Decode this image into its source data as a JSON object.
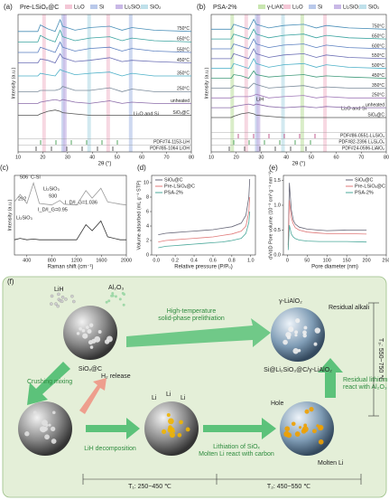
{
  "chart_data": [
    {
      "type": "line",
      "panel_label": "(a)",
      "title": "Pre-LSiOₓ@C",
      "xlabel": "2θ (°)",
      "ylabel": "Intensity (a.u.)",
      "legend": "curve-end",
      "xlim": [
        10,
        80
      ],
      "xticks": [
        10,
        20,
        30,
        40,
        50,
        60,
        70,
        80
      ],
      "ylim": [
        0,
        105
      ],
      "x": [
        10,
        18,
        19,
        22,
        25,
        27,
        28,
        33,
        39,
        47,
        52,
        56,
        65,
        80
      ],
      "phases": [
        {
          "name": "Li₂O",
          "color": "#f3c7d6"
        },
        {
          "name": "Si",
          "color": "#b9c9ea"
        },
        {
          "name": "Li₂SiO₃",
          "color": "#c9b8e6"
        },
        {
          "name": "SiO₂",
          "color": "#bfe0ea"
        }
      ],
      "references": [
        "PDF#85-1064 LiOH",
        "PDF#74-1153-LiH"
      ],
      "annotations": [
        "Li₂O and Si"
      ],
      "series": [
        {
          "name": "750°C",
          "color": "#4a8fb8",
          "values": [
            92,
            92,
            97,
            94,
            92,
            101,
            96,
            93,
            95,
            96,
            93,
            95,
            93,
            92
          ]
        },
        {
          "name": "650°C",
          "color": "#3aa3a0",
          "values": [
            84,
            84,
            89,
            86,
            84,
            93,
            88,
            85,
            87,
            88,
            85,
            87,
            85,
            84
          ]
        },
        {
          "name": "550°C",
          "color": "#5a7fc0",
          "values": [
            76,
            76,
            80,
            78,
            76,
            84,
            80,
            77,
            79,
            80,
            77,
            79,
            77,
            76
          ]
        },
        {
          "name": "450°C",
          "color": "#6b6fb5",
          "values": [
            68,
            68,
            71,
            70,
            68,
            75,
            72,
            69,
            70,
            72,
            69,
            70,
            69,
            68
          ]
        },
        {
          "name": "350°C",
          "color": "#4cb0c8",
          "values": [
            58,
            58,
            60,
            59,
            58,
            63,
            62,
            59,
            60,
            61,
            58,
            60,
            58,
            58
          ]
        },
        {
          "name": "250°C",
          "color": "#7a8a9a",
          "values": [
            46,
            46,
            47,
            47,
            47,
            48,
            50,
            47,
            47,
            49,
            46,
            48,
            46,
            46
          ]
        },
        {
          "name": "unheated",
          "color": "#8a6aa8",
          "values": [
            37,
            37,
            38,
            39,
            40,
            39,
            40,
            38,
            37,
            39,
            37,
            38,
            37,
            37
          ]
        },
        {
          "name": "SiOₓ@C",
          "color": "#555555",
          "values": [
            28,
            28,
            29,
            31,
            32,
            31,
            30,
            29,
            28,
            28,
            28,
            28,
            28,
            28
          ]
        }
      ]
    },
    {
      "type": "line",
      "panel_label": "(b)",
      "title": "PSA-2%",
      "xlabel": "2θ (°)",
      "ylabel": "Intensity (a.u.)",
      "legend": "curve-end",
      "xlim": [
        10,
        80
      ],
      "xticks": [
        10,
        20,
        30,
        40,
        50,
        60,
        70,
        80
      ],
      "ylim": [
        0,
        112
      ],
      "x": [
        10,
        18,
        19,
        22,
        25,
        27,
        28,
        33,
        39,
        47,
        52,
        56,
        65,
        80
      ],
      "phases": [
        {
          "name": "γ-LiAlO₂",
          "color": "#c9e6b0"
        },
        {
          "name": "Li₂O",
          "color": "#f3c7d6"
        },
        {
          "name": "Si",
          "color": "#b9c9ea"
        },
        {
          "name": "Li₂SiO₃",
          "color": "#c9b8e6"
        },
        {
          "name": "SiO₂",
          "color": "#bfe0ea"
        }
      ],
      "references": [
        "PDF#24-0596-LiAlO₂",
        "PDF#82-2396 Li₂Si₂O₅",
        "PDF#86-0551-Li₂SiO₃"
      ],
      "annotations": [
        "LiH",
        "Li₂O and Si"
      ],
      "series": [
        {
          "name": "750°C",
          "color": "#4a8fb8",
          "values": [
            100,
            100,
            104,
            102,
            100,
            108,
            104,
            101,
            103,
            104,
            101,
            103,
            101,
            100
          ]
        },
        {
          "name": "650°C",
          "color": "#3aa3a0",
          "values": [
            92,
            92,
            96,
            94,
            92,
            100,
            96,
            93,
            95,
            96,
            93,
            95,
            93,
            92
          ]
        },
        {
          "name": "600°C",
          "color": "#5a7fc0",
          "values": [
            84,
            84,
            88,
            86,
            84,
            92,
            88,
            85,
            87,
            88,
            85,
            87,
            85,
            84
          ]
        },
        {
          "name": "550°C",
          "color": "#6b6fb5",
          "values": [
            76,
            76,
            80,
            78,
            76,
            84,
            80,
            77,
            79,
            80,
            77,
            79,
            77,
            76
          ]
        },
        {
          "name": "500°C",
          "color": "#4cb0c8",
          "values": [
            68,
            68,
            72,
            70,
            68,
            76,
            72,
            69,
            71,
            72,
            69,
            71,
            69,
            68
          ]
        },
        {
          "name": "450°C",
          "color": "#3f9a7a",
          "values": [
            60,
            60,
            63,
            62,
            60,
            66,
            63,
            61,
            62,
            63,
            61,
            62,
            61,
            60
          ]
        },
        {
          "name": "350°C",
          "color": "#7a8a9a",
          "values": [
            52,
            52,
            54,
            53,
            52,
            56,
            55,
            52,
            53,
            54,
            52,
            53,
            52,
            52
          ]
        },
        {
          "name": "250°C",
          "color": "#a07ab8",
          "values": [
            44,
            44,
            45,
            45,
            45,
            46,
            47,
            44,
            45,
            46,
            44,
            45,
            44,
            44
          ]
        },
        {
          "name": "unheated",
          "color": "#8a6aa8",
          "values": [
            36,
            36,
            37,
            38,
            39,
            38,
            39,
            37,
            36,
            37,
            36,
            37,
            36,
            36
          ]
        },
        {
          "name": "SiOₓ@C",
          "color": "#555555",
          "values": [
            28,
            28,
            29,
            31,
            32,
            31,
            30,
            29,
            28,
            28,
            28,
            28,
            28,
            28
          ]
        }
      ]
    },
    {
      "type": "line",
      "panel_label": "(c)",
      "xlabel": "Raman shift (cm⁻¹)",
      "ylabel": "Intensity (a.u.)",
      "legend": "none",
      "xlim": [
        200,
        2000
      ],
      "xticks": [
        400,
        800,
        1200,
        1600,
        2000
      ],
      "ylim": [
        0,
        105
      ],
      "x": [
        200,
        292,
        400,
        506,
        600,
        800,
        930,
        1000,
        1200,
        1350,
        1450,
        1590,
        1700,
        1900,
        2000
      ],
      "annotations": [
        "506",
        "C-Si",
        "292",
        "Li₂SiO₃",
        "930",
        "I_D/I_G=1.036",
        "I_D/I_G=0.95",
        "Li₂SiO₃"
      ],
      "series": [
        {
          "name": "Pre-LSiOₓ@C",
          "color": "#9a9a9a",
          "values": [
            70,
            80,
            68,
            95,
            68,
            66,
            72,
            67,
            66,
            85,
            75,
            88,
            70,
            67,
            66
          ]
        },
        {
          "name": "SiOₓ@C",
          "color": "#333333",
          "values": [
            20,
            22,
            20,
            21,
            20,
            20,
            20,
            20,
            20,
            40,
            32,
            45,
            24,
            20,
            20
          ]
        }
      ]
    },
    {
      "type": "line",
      "panel_label": "(d)",
      "xlabel": "Relative pressure (P/P₀)",
      "ylabel": "Volume adsorbed (mL g⁻¹ STP)",
      "legend": "upper left",
      "xlim": [
        -0.05,
        1.05
      ],
      "xticks": [
        {
          "value": 0,
          "label": "0.0"
        },
        0.2,
        0.4,
        0.6,
        0.8,
        {
          "value": 1,
          "label": "1.0"
        }
      ],
      "ylim": [
        0,
        11
      ],
      "yticks": [
        0,
        2,
        4,
        6,
        8,
        10
      ],
      "x": [
        0.02,
        0.1,
        0.2,
        0.3,
        0.4,
        0.5,
        0.6,
        0.7,
        0.8,
        0.9,
        0.95,
        0.98,
        0.99
      ],
      "series": [
        {
          "name": "SiOₓ@C",
          "color": "#666677",
          "values": [
            2.8,
            3,
            3.1,
            3.2,
            3.3,
            3.4,
            3.5,
            3.7,
            3.9,
            4.4,
            5.5,
            8,
            10.5
          ]
        },
        {
          "name": "Pre-LSiOₓ@C",
          "color": "#e07a7a",
          "values": [
            1.8,
            2,
            2.1,
            2.2,
            2.3,
            2.4,
            2.5,
            2.7,
            2.9,
            3.3,
            4,
            6,
            8
          ]
        },
        {
          "name": "PSA-2%",
          "color": "#4aa89a",
          "values": [
            1,
            1.2,
            1.3,
            1.4,
            1.5,
            1.6,
            1.7,
            1.8,
            2,
            2.3,
            3,
            4.5,
            6
          ]
        }
      ]
    },
    {
      "type": "line",
      "panel_label": "(e)",
      "xlabel": "Pore diameter (nm)",
      "ylabel": "dV/dD Pore volume (10⁻³ cm³ g⁻¹ nm⁻¹)",
      "legend": "upper right",
      "xlim": [
        -10,
        250
      ],
      "xticks": [
        0,
        50,
        100,
        150,
        200,
        250
      ],
      "ylim": [
        0,
        1.6
      ],
      "yticks": [
        {
          "value": 0,
          "label": "0.0"
        },
        0.5,
        {
          "value": 1,
          "label": "1.0"
        },
        1.5
      ],
      "x": [
        2,
        5,
        10,
        15,
        20,
        30,
        50,
        80,
        100,
        150,
        200
      ],
      "series": [
        {
          "name": "SiOₓ@C",
          "color": "#666677",
          "values": [
            0.2,
            1.45,
            0.9,
            0.7,
            0.62,
            0.56,
            0.52,
            0.5,
            0.49,
            0.5,
            0.5
          ]
        },
        {
          "name": "Pre-LSiOₓ@C",
          "color": "#e07a7a",
          "values": [
            0.15,
            1.1,
            0.75,
            0.62,
            0.55,
            0.5,
            0.46,
            0.44,
            0.43,
            0.43,
            0.42
          ]
        },
        {
          "name": "PSA-2%",
          "color": "#4aa89a",
          "values": [
            0.1,
            0.6,
            0.42,
            0.36,
            0.33,
            0.3,
            0.28,
            0.27,
            0.27,
            0.27,
            0.26
          ]
        }
      ]
    }
  ],
  "diagram": {
    "panel_label": "(f)",
    "lih": "LiH",
    "al2o3": "Al₂O₃",
    "sioxc": "SiOₓ@C",
    "top_arrow": [
      "High-temperature",
      "solid-phase prelithiation"
    ],
    "lialo2": "γ-LiAlO₂",
    "residual": "Residual alkali",
    "product": "Si@Li₂SiO₃@C/γ-LiAlO₂",
    "crushing": "Crushing mixing",
    "h2": "H₂ release",
    "li": [
      "Li",
      "Li",
      "Li"
    ],
    "decomp": "LiH decomposition",
    "lithiation": [
      "Lithiation of SiOₓ",
      "Molten Li react with carbon"
    ],
    "residual_li": [
      "Residual lithium",
      "react with Al₂O₃"
    ],
    "hole": "Hole",
    "molten": "Molten Li",
    "t1": "T₁: 250~450 ℃",
    "t2": "T₂: 450~550 ℃",
    "t3": "T₃: 550~750 ℃"
  }
}
